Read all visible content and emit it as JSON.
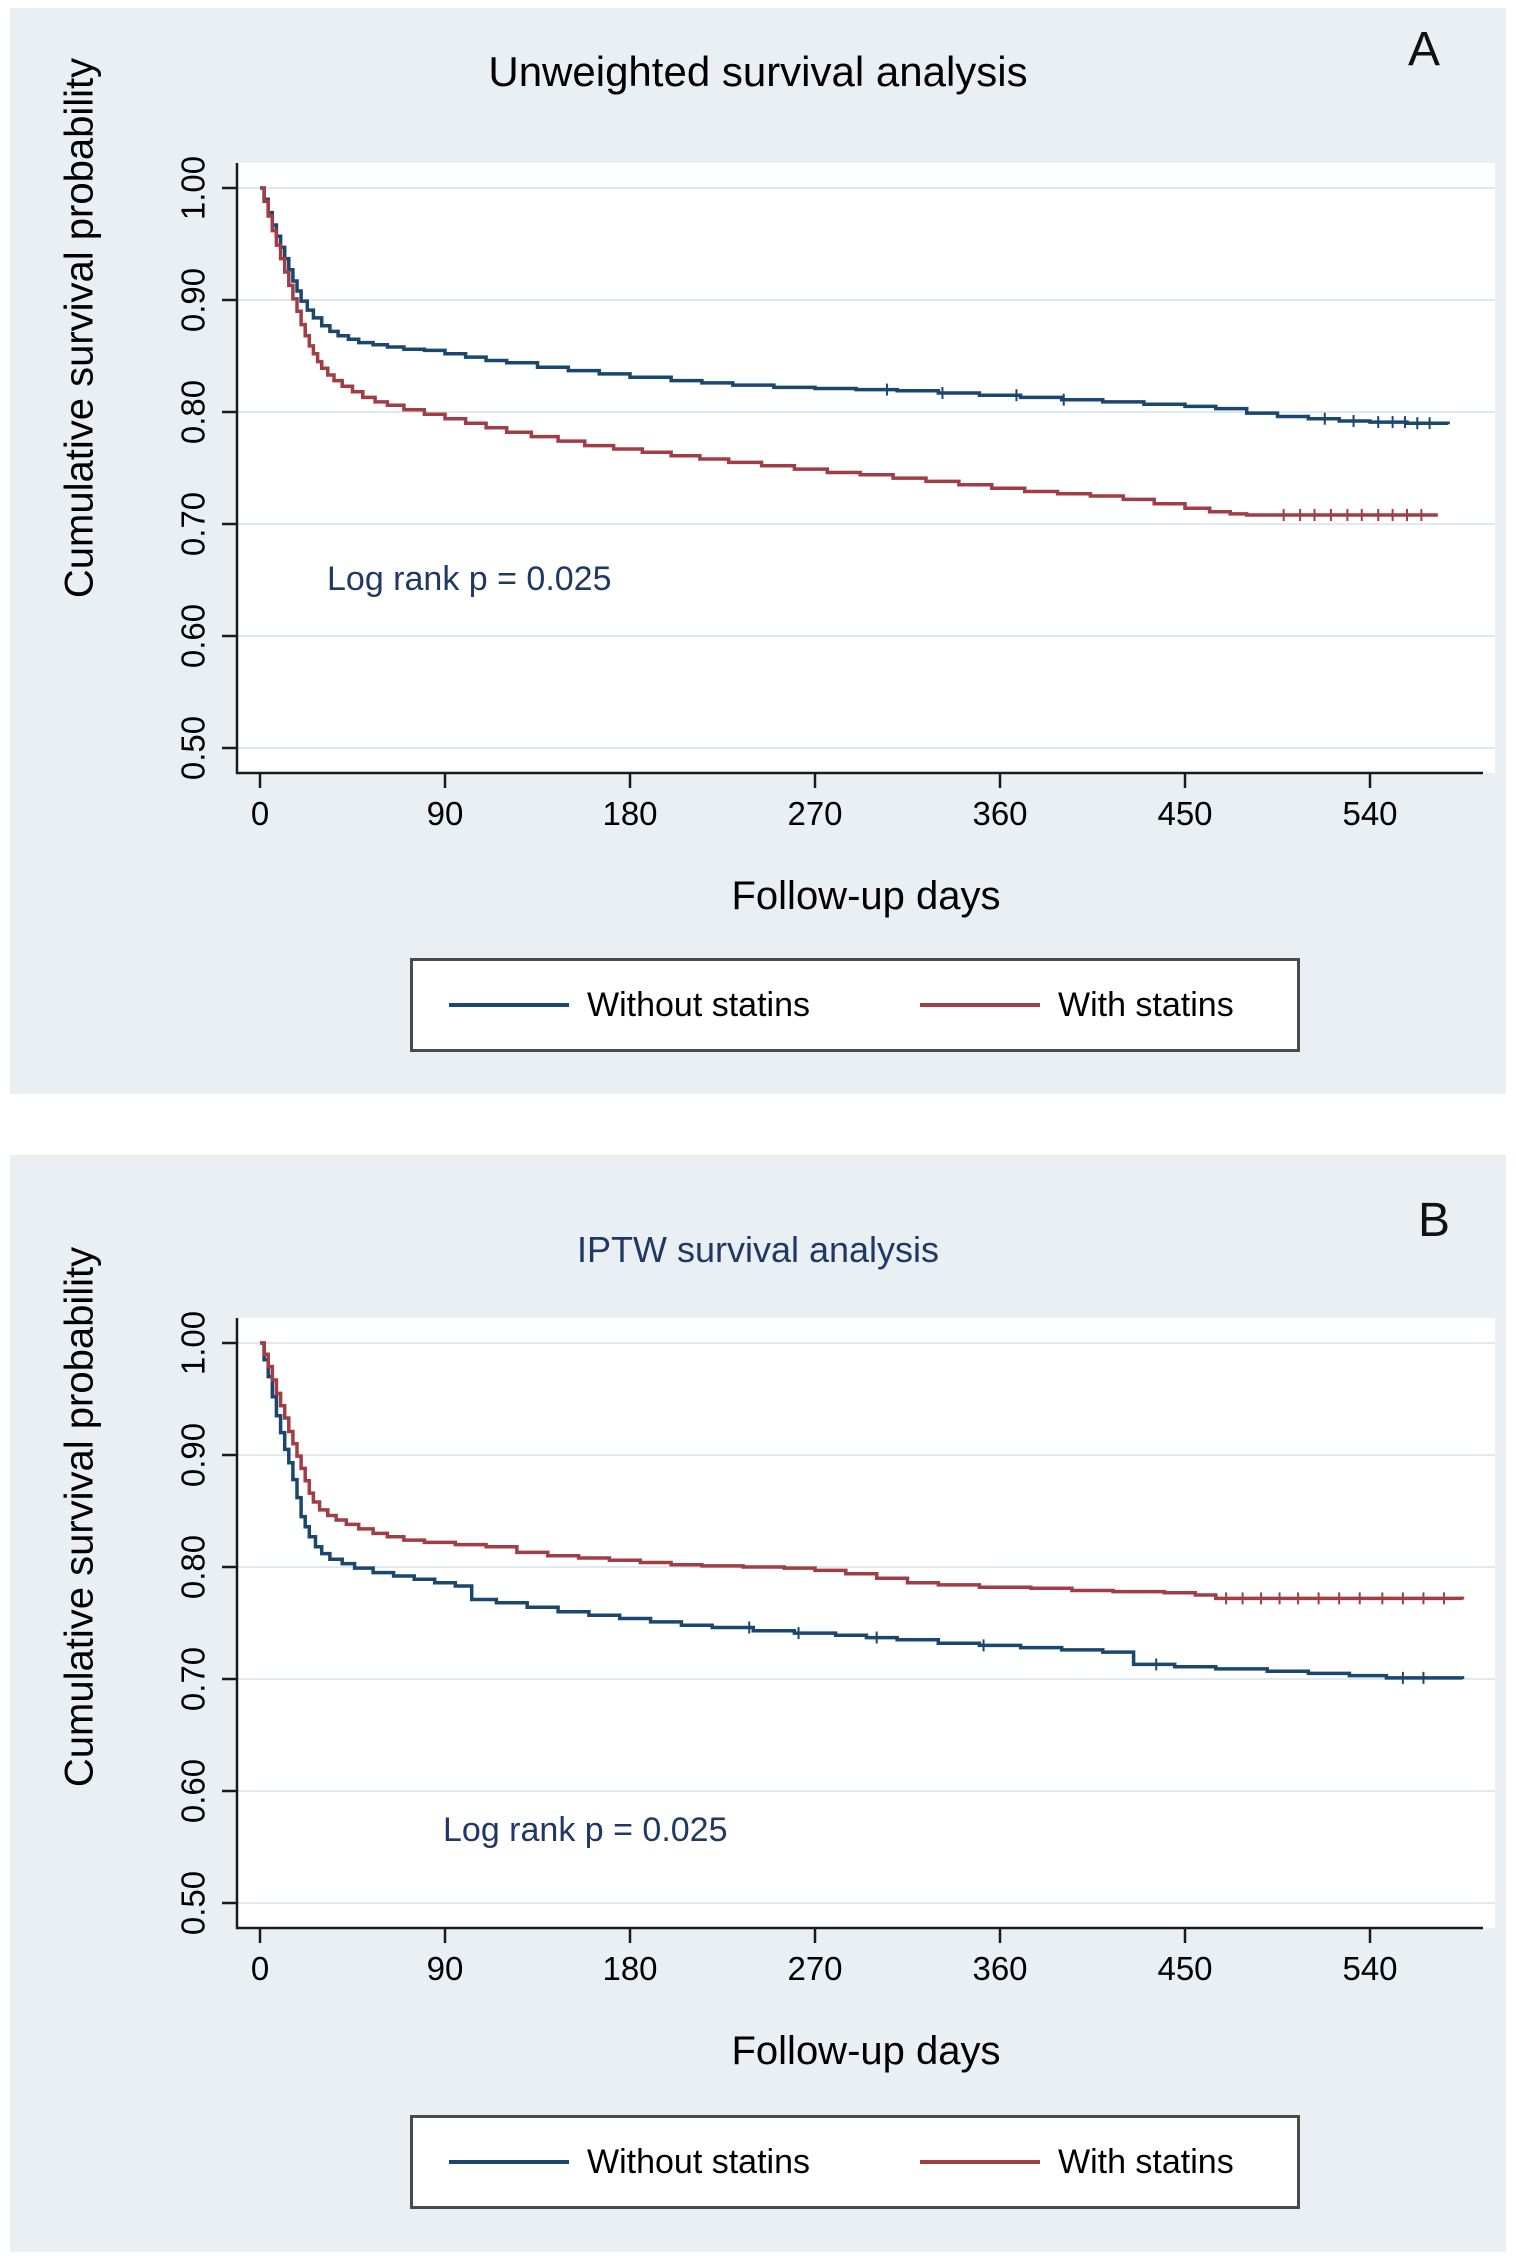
{
  "page": {
    "background_color": "#e9eff2",
    "text_navy": "#1f3864"
  },
  "chart_data": [
    {
      "type": "line",
      "variant": "kaplan-meier-step",
      "corner_label": "A",
      "title": "Unweighted survival analysis",
      "title_color": "#000000",
      "annotation": "Log rank p = 0.025",
      "xlabel": "Follow-up days",
      "ylabel": "Cumulative survival probability",
      "xlim": [
        0,
        590
      ],
      "ylim": [
        0.48,
        1.02
      ],
      "grid": true,
      "legend_position": "bottom",
      "xticks": [
        {
          "value": 0,
          "label": "0"
        },
        {
          "value": 90,
          "label": "90"
        },
        {
          "value": 180,
          "label": "180"
        },
        {
          "value": 270,
          "label": "270"
        },
        {
          "value": 360,
          "label": "360"
        },
        {
          "value": 450,
          "label": "450"
        },
        {
          "value": 540,
          "label": "540"
        }
      ],
      "yticks": [
        {
          "value": 1.0,
          "label": "1.00"
        },
        {
          "value": 0.9,
          "label": "0.90"
        },
        {
          "value": 0.8,
          "label": "0.80"
        },
        {
          "value": 0.7,
          "label": "0.70"
        },
        {
          "value": 0.6,
          "label": "0.60"
        },
        {
          "value": 0.5,
          "label": "0.50"
        }
      ],
      "series": [
        {
          "name": "Without statins",
          "color": "#1a476f",
          "steps": [
            [
              0,
              1.0
            ],
            [
              2,
              0.99
            ],
            [
              4,
              0.978
            ],
            [
              6,
              0.967
            ],
            [
              8,
              0.957
            ],
            [
              10,
              0.947
            ],
            [
              12,
              0.937
            ],
            [
              14,
              0.927
            ],
            [
              16,
              0.917
            ],
            [
              18,
              0.908
            ],
            [
              20,
              0.899
            ],
            [
              23,
              0.891
            ],
            [
              26,
              0.884
            ],
            [
              30,
              0.877
            ],
            [
              34,
              0.872
            ],
            [
              38,
              0.868
            ],
            [
              43,
              0.865
            ],
            [
              48,
              0.862
            ],
            [
              55,
              0.86
            ],
            [
              62,
              0.858
            ],
            [
              70,
              0.856
            ],
            [
              80,
              0.855
            ],
            [
              90,
              0.852
            ],
            [
              100,
              0.849
            ],
            [
              110,
              0.846
            ],
            [
              120,
              0.844
            ],
            [
              135,
              0.84
            ],
            [
              150,
              0.837
            ],
            [
              165,
              0.834
            ],
            [
              180,
              0.831
            ],
            [
              200,
              0.828
            ],
            [
              215,
              0.826
            ],
            [
              230,
              0.824
            ],
            [
              250,
              0.822
            ],
            [
              270,
              0.821
            ],
            [
              290,
              0.82
            ],
            [
              310,
              0.819
            ],
            [
              330,
              0.817
            ],
            [
              350,
              0.815
            ],
            [
              370,
              0.813
            ],
            [
              390,
              0.811
            ],
            [
              410,
              0.809
            ],
            [
              430,
              0.807
            ],
            [
              450,
              0.805
            ],
            [
              465,
              0.803
            ],
            [
              480,
              0.799
            ],
            [
              495,
              0.796
            ],
            [
              510,
              0.794
            ],
            [
              525,
              0.792
            ],
            [
              540,
              0.791
            ],
            [
              558,
              0.79
            ],
            [
              578,
              0.789
            ]
          ],
          "censor_days": [
            305,
            332,
            368,
            391,
            518,
            532,
            544,
            551,
            557,
            563,
            569
          ]
        },
        {
          "name": "With statins",
          "color": "#a13d44",
          "steps": [
            [
              0,
              1.0
            ],
            [
              2,
              0.988
            ],
            [
              4,
              0.975
            ],
            [
              6,
              0.962
            ],
            [
              8,
              0.949
            ],
            [
              10,
              0.937
            ],
            [
              12,
              0.925
            ],
            [
              14,
              0.913
            ],
            [
              16,
              0.901
            ],
            [
              18,
              0.89
            ],
            [
              20,
              0.878
            ],
            [
              22,
              0.868
            ],
            [
              24,
              0.859
            ],
            [
              26,
              0.852
            ],
            [
              28,
              0.845
            ],
            [
              30,
              0.839
            ],
            [
              33,
              0.833
            ],
            [
              36,
              0.828
            ],
            [
              40,
              0.823
            ],
            [
              45,
              0.818
            ],
            [
              50,
              0.813
            ],
            [
              56,
              0.809
            ],
            [
              62,
              0.806
            ],
            [
              70,
              0.802
            ],
            [
              80,
              0.798
            ],
            [
              90,
              0.794
            ],
            [
              100,
              0.79
            ],
            [
              110,
              0.786
            ],
            [
              120,
              0.782
            ],
            [
              132,
              0.778
            ],
            [
              145,
              0.774
            ],
            [
              158,
              0.77
            ],
            [
              172,
              0.767
            ],
            [
              186,
              0.764
            ],
            [
              200,
              0.761
            ],
            [
              214,
              0.758
            ],
            [
              228,
              0.755
            ],
            [
              244,
              0.752
            ],
            [
              260,
              0.749
            ],
            [
              276,
              0.746
            ],
            [
              292,
              0.744
            ],
            [
              308,
              0.741
            ],
            [
              324,
              0.738
            ],
            [
              340,
              0.735
            ],
            [
              356,
              0.732
            ],
            [
              372,
              0.729
            ],
            [
              388,
              0.727
            ],
            [
              404,
              0.725
            ],
            [
              420,
              0.722
            ],
            [
              435,
              0.718
            ],
            [
              450,
              0.714
            ],
            [
              462,
              0.711
            ],
            [
              472,
              0.709
            ],
            [
              480,
              0.708
            ],
            [
              573,
              0.708
            ]
          ],
          "censor_days": [
            498,
            506,
            513,
            521,
            529,
            536,
            544,
            551,
            558,
            565
          ]
        }
      ]
    },
    {
      "type": "line",
      "variant": "kaplan-meier-step",
      "corner_label": "B",
      "title": "IPTW survival analysis",
      "title_color": "#1f3864",
      "annotation": "Log rank p = 0.025",
      "xlabel": "Follow-up days",
      "ylabel": "Cumulative survival probability",
      "xlim": [
        0,
        590
      ],
      "ylim": [
        0.48,
        1.02
      ],
      "grid": true,
      "legend_position": "bottom",
      "xticks": [
        {
          "value": 0,
          "label": "0"
        },
        {
          "value": 90,
          "label": "90"
        },
        {
          "value": 180,
          "label": "180"
        },
        {
          "value": 270,
          "label": "270"
        },
        {
          "value": 360,
          "label": "360"
        },
        {
          "value": 450,
          "label": "450"
        },
        {
          "value": 540,
          "label": "540"
        }
      ],
      "yticks": [
        {
          "value": 1.0,
          "label": "1.00"
        },
        {
          "value": 0.9,
          "label": "0.90"
        },
        {
          "value": 0.8,
          "label": "0.80"
        },
        {
          "value": 0.7,
          "label": "0.70"
        },
        {
          "value": 0.6,
          "label": "0.60"
        },
        {
          "value": 0.5,
          "label": "0.50"
        }
      ],
      "series": [
        {
          "name": "Without statins",
          "color": "#1a476f",
          "steps": [
            [
              0,
              1.0
            ],
            [
              2,
              0.985
            ],
            [
              4,
              0.97
            ],
            [
              6,
              0.952
            ],
            [
              8,
              0.935
            ],
            [
              10,
              0.92
            ],
            [
              12,
              0.905
            ],
            [
              14,
              0.893
            ],
            [
              16,
              0.878
            ],
            [
              18,
              0.862
            ],
            [
              20,
              0.845
            ],
            [
              22,
              0.836
            ],
            [
              24,
              0.827
            ],
            [
              27,
              0.818
            ],
            [
              30,
              0.812
            ],
            [
              34,
              0.807
            ],
            [
              40,
              0.803
            ],
            [
              46,
              0.799
            ],
            [
              55,
              0.795
            ],
            [
              65,
              0.792
            ],
            [
              75,
              0.789
            ],
            [
              85,
              0.786
            ],
            [
              95,
              0.783
            ],
            [
              103,
              0.771
            ],
            [
              115,
              0.768
            ],
            [
              130,
              0.764
            ],
            [
              145,
              0.76
            ],
            [
              160,
              0.757
            ],
            [
              175,
              0.754
            ],
            [
              190,
              0.751
            ],
            [
              205,
              0.748
            ],
            [
              220,
              0.746
            ],
            [
              240,
              0.743
            ],
            [
              260,
              0.741
            ],
            [
              280,
              0.739
            ],
            [
              295,
              0.737
            ],
            [
              310,
              0.735
            ],
            [
              330,
              0.732
            ],
            [
              350,
              0.73
            ],
            [
              370,
              0.728
            ],
            [
              390,
              0.726
            ],
            [
              410,
              0.724
            ],
            [
              425,
              0.713
            ],
            [
              445,
              0.711
            ],
            [
              465,
              0.709
            ],
            [
              490,
              0.707
            ],
            [
              510,
              0.705
            ],
            [
              530,
              0.703
            ],
            [
              548,
              0.701
            ],
            [
              585,
              0.7
            ]
          ],
          "censor_days": [
            238,
            262,
            300,
            352,
            436,
            556,
            566
          ]
        },
        {
          "name": "With statins",
          "color": "#a13d44",
          "steps": [
            [
              0,
              1.0
            ],
            [
              2,
              0.99
            ],
            [
              4,
              0.979
            ],
            [
              6,
              0.967
            ],
            [
              8,
              0.955
            ],
            [
              10,
              0.944
            ],
            [
              12,
              0.933
            ],
            [
              14,
              0.921
            ],
            [
              16,
              0.91
            ],
            [
              18,
              0.899
            ],
            [
              20,
              0.888
            ],
            [
              22,
              0.877
            ],
            [
              24,
              0.866
            ],
            [
              26,
              0.858
            ],
            [
              29,
              0.851
            ],
            [
              33,
              0.846
            ],
            [
              37,
              0.842
            ],
            [
              42,
              0.838
            ],
            [
              48,
              0.834
            ],
            [
              55,
              0.83
            ],
            [
              62,
              0.827
            ],
            [
              70,
              0.824
            ],
            [
              80,
              0.822
            ],
            [
              95,
              0.82
            ],
            [
              110,
              0.818
            ],
            [
              125,
              0.813
            ],
            [
              140,
              0.81
            ],
            [
              155,
              0.808
            ],
            [
              170,
              0.806
            ],
            [
              185,
              0.804
            ],
            [
              200,
              0.802
            ],
            [
              215,
              0.801
            ],
            [
              235,
              0.8
            ],
            [
              255,
              0.799
            ],
            [
              270,
              0.797
            ],
            [
              285,
              0.794
            ],
            [
              300,
              0.79
            ],
            [
              315,
              0.786
            ],
            [
              330,
              0.784
            ],
            [
              350,
              0.782
            ],
            [
              375,
              0.781
            ],
            [
              395,
              0.779
            ],
            [
              415,
              0.778
            ],
            [
              440,
              0.777
            ],
            [
              455,
              0.775
            ],
            [
              465,
              0.772
            ],
            [
              585,
              0.771
            ]
          ],
          "censor_days": [
            470,
            478,
            487,
            496,
            505,
            515,
            525,
            535,
            546,
            556,
            566,
            576
          ]
        }
      ]
    }
  ]
}
